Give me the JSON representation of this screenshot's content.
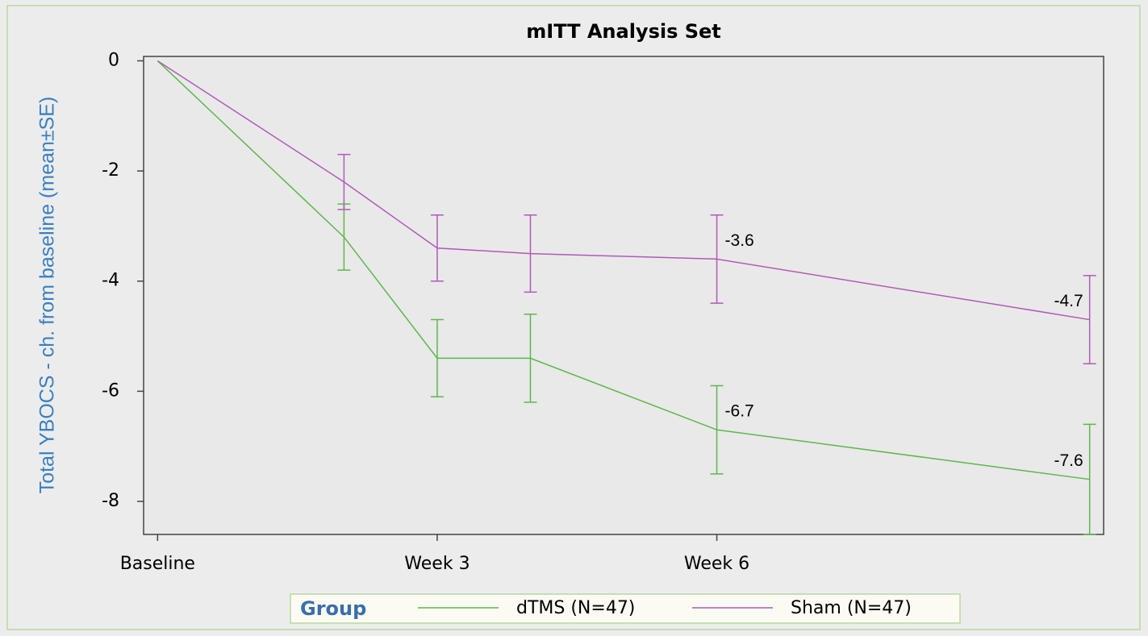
{
  "chart_data": {
    "type": "line",
    "title": "mITT Analysis Set",
    "y_label": "Total YBOCS - ch. from baseline (mean±SE)",
    "x": [
      0,
      2,
      3,
      4,
      6,
      10
    ],
    "xlim": [
      -0.15,
      10.15
    ],
    "xticks": [
      {
        "value": 0,
        "label": "Baseline"
      },
      {
        "value": 3,
        "label": "Week 3"
      },
      {
        "value": 6,
        "label": "Week 6"
      }
    ],
    "ylim": [
      -8.6,
      0.08
    ],
    "yticks": [
      0,
      -2,
      -4,
      -6,
      -8
    ],
    "legend_title": "Group",
    "legend": "bottom",
    "series": [
      {
        "name": "dTMS (N=47)",
        "color": "#5cb84a",
        "values": [
          0,
          -3.2,
          -5.4,
          -5.4,
          -6.7,
          -7.6
        ],
        "errors": [
          0,
          0.6,
          0.7,
          0.8,
          0.8,
          1.0
        ],
        "value_labels": [
          null,
          null,
          null,
          null,
          "-6.7",
          "-7.6"
        ]
      },
      {
        "name": "Sham (N=47)",
        "color": "#b05ab8",
        "values": [
          0,
          -2.2,
          -3.4,
          -3.5,
          -3.6,
          -4.7
        ],
        "errors": [
          0,
          0.5,
          0.6,
          0.7,
          0.8,
          0.8
        ],
        "value_labels": [
          null,
          null,
          null,
          null,
          "-3.6",
          "-4.7"
        ]
      }
    ]
  }
}
